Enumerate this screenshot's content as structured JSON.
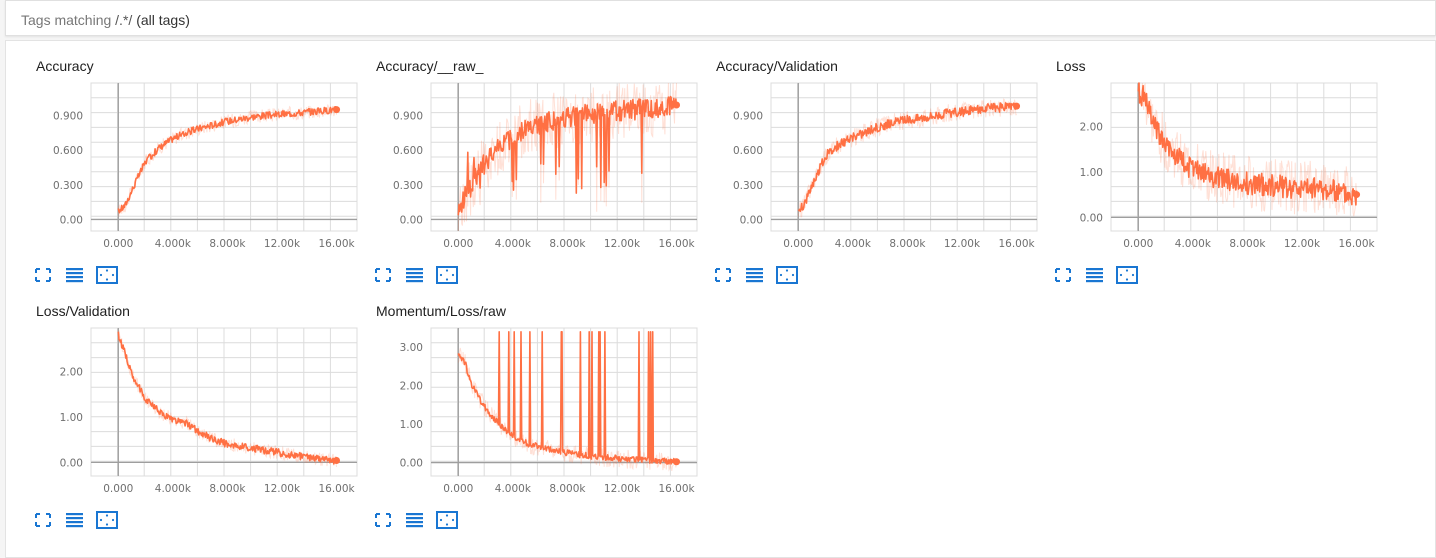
{
  "header": {
    "prefix": "Tags matching",
    "regex": "/.*/",
    "suffix": "(all tags)"
  },
  "colors": {
    "accent": "#ff7043",
    "icon": "#1976d2",
    "grid": "#dcdcdc",
    "axis": "#9e9e9e"
  },
  "icons": [
    "fullscreen-icon",
    "list-icon",
    "fit-domain-icon"
  ],
  "chart_data": [
    {
      "type": "line",
      "title": "Accuracy",
      "xlim": [
        -2000,
        17500
      ],
      "ylim": [
        -0.1,
        1.18
      ],
      "xticks": [
        0,
        4000,
        8000,
        12000,
        16000
      ],
      "xtick_labels": [
        "0.000",
        "4.000k",
        "8.000k",
        "12.00k",
        "16.00k"
      ],
      "yticks": [
        0,
        0.3,
        0.6,
        0.9
      ],
      "ytick_labels": [
        "0.00",
        "0.300",
        "0.600",
        "0.900"
      ],
      "series": [
        {
          "x": [
            0,
            500,
            1000,
            1500,
            2000,
            3000,
            4000,
            5000,
            6000,
            7000,
            8000,
            9000,
            10000,
            11000,
            12000,
            13000,
            14000,
            15000,
            16000
          ],
          "y": [
            0.07,
            0.12,
            0.25,
            0.38,
            0.5,
            0.62,
            0.7,
            0.75,
            0.79,
            0.82,
            0.85,
            0.87,
            0.89,
            0.9,
            0.91,
            0.92,
            0.93,
            0.94,
            0.95
          ]
        }
      ],
      "noise": 0.03,
      "raw_noise": 0.06,
      "spike_max": 0
    },
    {
      "type": "line",
      "title": "Accuracy/__raw_",
      "xlim": [
        -2000,
        17500
      ],
      "ylim": [
        -0.1,
        1.18
      ],
      "xticks": [
        0,
        4000,
        8000,
        12000,
        16000
      ],
      "xtick_labels": [
        "0.000",
        "4.000k",
        "8.000k",
        "12.00k",
        "16.00k"
      ],
      "yticks": [
        0,
        0.3,
        0.6,
        0.9
      ],
      "ytick_labels": [
        "0.00",
        "0.300",
        "0.600",
        "0.900"
      ],
      "series": [
        {
          "x": [
            0,
            500,
            1000,
            2000,
            3000,
            4000,
            5000,
            6000,
            7000,
            8000,
            9000,
            10000,
            11000,
            12000,
            13000,
            14000,
            15000,
            16000
          ],
          "y": [
            0.05,
            0.2,
            0.3,
            0.5,
            0.62,
            0.72,
            0.78,
            0.82,
            0.86,
            0.88,
            0.9,
            0.92,
            0.93,
            0.94,
            0.95,
            0.96,
            0.97,
            0.99
          ]
        }
      ],
      "noise": 0.09,
      "raw_noise": 0.25,
      "spike_max": 0,
      "dip": true
    },
    {
      "type": "line",
      "title": "Accuracy/Validation",
      "xlim": [
        -2000,
        17500
      ],
      "ylim": [
        -0.1,
        1.18
      ],
      "xticks": [
        0,
        4000,
        8000,
        12000,
        16000
      ],
      "xtick_labels": [
        "0.000",
        "4.000k",
        "8.000k",
        "12.00k",
        "16.00k"
      ],
      "yticks": [
        0,
        0.3,
        0.6,
        0.9
      ],
      "ytick_labels": [
        "0.00",
        "0.300",
        "0.600",
        "0.900"
      ],
      "series": [
        {
          "x": [
            0,
            500,
            1000,
            1500,
            2000,
            3000,
            4000,
            5000,
            6000,
            7000,
            8000,
            9000,
            10000,
            11000,
            12000,
            13000,
            14000,
            15000,
            16000
          ],
          "y": [
            0.05,
            0.15,
            0.3,
            0.42,
            0.55,
            0.65,
            0.71,
            0.76,
            0.8,
            0.84,
            0.86,
            0.88,
            0.9,
            0.92,
            0.93,
            0.95,
            0.96,
            0.97,
            0.98
          ]
        }
      ],
      "noise": 0.04,
      "raw_noise": 0.08,
      "spike_max": 0
    },
    {
      "type": "line",
      "title": "Loss",
      "xlim": [
        -2000,
        17500
      ],
      "ylim": [
        -0.3,
        2.95
      ],
      "xticks": [
        0,
        4000,
        8000,
        12000,
        16000
      ],
      "xtick_labels": [
        "0.000",
        "4.000k",
        "8.000k",
        "12.00k",
        "16.00k"
      ],
      "yticks": [
        0,
        1,
        2
      ],
      "ytick_labels": [
        "0.00",
        "1.00",
        "2.00"
      ],
      "series": [
        {
          "x": [
            0,
            500,
            1000,
            2000,
            3000,
            4000,
            5000,
            6000,
            8000,
            10000,
            12000,
            14000,
            16000
          ],
          "y": [
            2.8,
            2.6,
            2.1,
            1.6,
            1.3,
            1.05,
            0.95,
            0.85,
            0.75,
            0.7,
            0.65,
            0.62,
            0.5
          ]
        }
      ],
      "noise": 0.25,
      "raw_noise": 0.6,
      "spike_max": 0
    },
    {
      "type": "line",
      "title": "Loss/Validation",
      "xlim": [
        -2000,
        17500
      ],
      "ylim": [
        -0.3,
        2.95
      ],
      "xticks": [
        0,
        4000,
        8000,
        12000,
        16000
      ],
      "xtick_labels": [
        "0.000",
        "4.000k",
        "8.000k",
        "12.00k",
        "16.00k"
      ],
      "yticks": [
        0,
        1,
        2
      ],
      "ytick_labels": [
        "0.00",
        "1.00",
        "2.00"
      ],
      "series": [
        {
          "x": [
            0,
            500,
            1000,
            2000,
            3000,
            4000,
            5000,
            6000,
            7000,
            8000,
            10000,
            12000,
            14000,
            16000
          ],
          "y": [
            2.8,
            2.4,
            1.9,
            1.4,
            1.1,
            0.95,
            0.85,
            0.65,
            0.5,
            0.4,
            0.3,
            0.2,
            0.1,
            0.04
          ]
        }
      ],
      "noise": 0.08,
      "raw_noise": 0.15,
      "spike_max": 0
    },
    {
      "type": "line",
      "title": "Momentum/Loss/raw",
      "xlim": [
        -2000,
        17500
      ],
      "ylim": [
        -0.35,
        3.5
      ],
      "xticks": [
        0,
        4000,
        8000,
        12000,
        16000
      ],
      "xtick_labels": [
        "0.000",
        "4.000k",
        "8.000k",
        "12.00k",
        "16.00k"
      ],
      "yticks": [
        0,
        1,
        2,
        3
      ],
      "ytick_labels": [
        "0.00",
        "1.00",
        "2.00",
        "3.00"
      ],
      "series": [
        {
          "x": [
            0,
            500,
            1000,
            2000,
            3000,
            4000,
            5000,
            6000,
            8000,
            10000,
            12000,
            14000,
            16000
          ],
          "y": [
            2.85,
            2.6,
            2.0,
            1.4,
            1.0,
            0.7,
            0.5,
            0.4,
            0.25,
            0.15,
            0.1,
            0.06,
            0.02
          ]
        }
      ],
      "noise": 0.08,
      "raw_noise": 0.25,
      "spike_max": 3.4
    }
  ]
}
